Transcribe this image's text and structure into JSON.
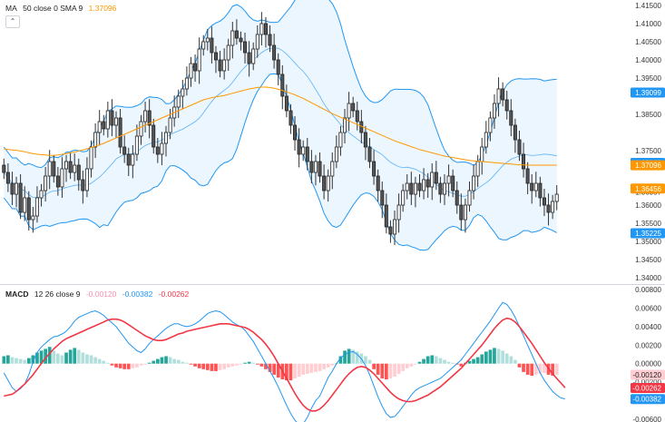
{
  "chart_data": [
    {
      "type": "candlestick",
      "panel": "price",
      "indicator_legend": {
        "name": "MA",
        "params": "50 close 0 SMA 9",
        "value": "1.37096"
      },
      "y_ticks": [
        "1.41500",
        "1.41000",
        "1.40500",
        "1.40000",
        "1.39500",
        "1.38500",
        "1.37500",
        "1.36357",
        "1.36000",
        "1.35500",
        "1.35000",
        "1.34500",
        "1.34000"
      ],
      "ylim": [
        1.3385,
        1.4165
      ],
      "closes": [
        1.369,
        1.366,
        1.363,
        1.366,
        1.358,
        1.362,
        1.356,
        1.357,
        1.362,
        1.364,
        1.368,
        1.372,
        1.368,
        1.365,
        1.37,
        1.372,
        1.369,
        1.371,
        1.367,
        1.364,
        1.37,
        1.376,
        1.38,
        1.383,
        1.381,
        1.386,
        1.382,
        1.384,
        1.376,
        1.374,
        1.371,
        1.374,
        1.379,
        1.383,
        1.386,
        1.382,
        1.376,
        1.374,
        1.377,
        1.38,
        1.384,
        1.387,
        1.39,
        1.392,
        1.395,
        1.399,
        1.397,
        1.403,
        1.405,
        1.406,
        1.402,
        1.4,
        1.397,
        1.4,
        1.404,
        1.408,
        1.406,
        1.405,
        1.402,
        1.399,
        1.403,
        1.407,
        1.41,
        1.407,
        1.404,
        1.4,
        1.396,
        1.39,
        1.386,
        1.382,
        1.378,
        1.374,
        1.376,
        1.372,
        1.369,
        1.372,
        1.368,
        1.364,
        1.368,
        1.372,
        1.376,
        1.38,
        1.384,
        1.388,
        1.386,
        1.383,
        1.38,
        1.376,
        1.372,
        1.368,
        1.364,
        1.36,
        1.354,
        1.352,
        1.356,
        1.36,
        1.364,
        1.366,
        1.363,
        1.366,
        1.364,
        1.367,
        1.365,
        1.369,
        1.366,
        1.363,
        1.366,
        1.368,
        1.364,
        1.36,
        1.356,
        1.36,
        1.364,
        1.368,
        1.372,
        1.376,
        1.38,
        1.384,
        1.388,
        1.392,
        1.389,
        1.386,
        1.382,
        1.378,
        1.374,
        1.37,
        1.366,
        1.364,
        1.366,
        1.362,
        1.36,
        1.358,
        1.361,
        1.363
      ],
      "ma": [
        1.3755,
        1.3753,
        1.3752,
        1.3751,
        1.3749,
        1.3747,
        1.3744,
        1.3742,
        1.374,
        1.3739,
        1.3738,
        1.3737,
        1.3737,
        1.3738,
        1.374,
        1.3742,
        1.3744,
        1.3746,
        1.3749,
        1.3752,
        1.3755,
        1.3759,
        1.3762,
        1.3766,
        1.377,
        1.3775,
        1.378,
        1.3785,
        1.379,
        1.3795,
        1.38,
        1.3805,
        1.381,
        1.3815,
        1.382,
        1.3825,
        1.383,
        1.3835,
        1.384,
        1.3845,
        1.385,
        1.3855,
        1.386,
        1.3865,
        1.387,
        1.3875,
        1.388,
        1.3885,
        1.389,
        1.3893,
        1.3896,
        1.3898,
        1.39,
        1.3902,
        1.3905,
        1.3908,
        1.3911,
        1.3914,
        1.3917,
        1.392,
        1.3922,
        1.3924,
        1.3925,
        1.3925,
        1.3924,
        1.3922,
        1.3919,
        1.3916,
        1.3912,
        1.3908,
        1.3904,
        1.3899,
        1.3894,
        1.3888,
        1.3882,
        1.3876,
        1.387,
        1.3864,
        1.3858,
        1.3852,
        1.3847,
        1.3842,
        1.3837,
        1.3832,
        1.3827,
        1.3822,
        1.3817,
        1.3812,
        1.3807,
        1.3802,
        1.3797,
        1.3792,
        1.3787,
        1.3782,
        1.3777,
        1.3773,
        1.3769,
        1.3765,
        1.3761,
        1.3757,
        1.3753,
        1.375,
        1.3747,
        1.3744,
        1.3741,
        1.3738,
        1.3735,
        1.3733,
        1.3731,
        1.3729,
        1.3727,
        1.3725,
        1.3723,
        1.3722,
        1.3721,
        1.372,
        1.3719,
        1.3718,
        1.3717,
        1.3716,
        1.3715,
        1.3714,
        1.3713,
        1.3712,
        1.3711,
        1.3711,
        1.371,
        1.371,
        1.371,
        1.371,
        1.371,
        1.371,
        1.371,
        1.371
      ],
      "price_labels": [
        {
          "text": "1.39099",
          "color": "#2196f3",
          "value": 1.39099
        },
        {
          "text": "1.37162",
          "color": "#2196f3",
          "value": 1.37162
        },
        {
          "text": "1.37096",
          "color": "#ff9800",
          "value": 1.37096
        },
        {
          "text": "1.36456",
          "color": "#ff9800",
          "value": 1.36456
        },
        {
          "text": "1.35225",
          "color": "#2196f3",
          "value": 1.35225
        }
      ]
    },
    {
      "type": "macd",
      "panel": "oscillator",
      "indicator_legend": {
        "name": "MACD",
        "params": "12 26 close 9",
        "values": [
          "-0.00120",
          "-0.00382",
          "-0.00262"
        ]
      },
      "y_ticks": [
        "0.00800",
        "0.00600",
        "0.00400",
        "0.00200",
        "0.00000",
        "-0.00200",
        "-0.00400",
        "-0.00600"
      ],
      "ylim": [
        -0.0063,
        0.0083
      ],
      "histogram": [
        0.0008,
        0.0009,
        0.0007,
        0.0006,
        0.0005,
        0.0004,
        0.0006,
        0.0009,
        0.0012,
        0.0014,
        0.0016,
        0.0018,
        0.0014,
        0.0011,
        0.0009,
        0.0012,
        0.0015,
        0.0017,
        0.0015,
        0.0012,
        0.001,
        0.0009,
        0.0007,
        0.0005,
        0.0003,
        0.0001,
        -0.0002,
        -0.0004,
        -0.0005,
        -0.0006,
        -0.0006,
        -0.0005,
        -0.0004,
        -0.0002,
        -0.0001,
        0.0001,
        0.0003,
        0.0005,
        0.0007,
        0.0008,
        0.0007,
        0.0005,
        0.0004,
        0.0002,
        0.0001,
        -0.0001,
        -0.0003,
        -0.0005,
        -0.0006,
        -0.0007,
        -0.0008,
        -0.0008,
        -0.0007,
        -0.0006,
        -0.0004,
        -0.0003,
        -0.0002,
        -0.0001,
        0.0001,
        0.0002,
        0.0001,
        -0.0001,
        -0.0003,
        -0.0006,
        -0.0009,
        -0.0012,
        -0.0015,
        -0.0017,
        -0.0018,
        -0.0018,
        -0.0016,
        -0.0014,
        -0.0012,
        -0.0011,
        -0.001,
        -0.0009,
        -0.0008,
        -0.0006,
        -0.0004,
        -0.0002,
        0.0,
        0.0008,
        0.0014,
        0.0016,
        0.0015,
        0.0013,
        0.0011,
        0.0008,
        0.0004,
        -0.0006,
        -0.0012,
        -0.0016,
        -0.0017,
        -0.0016,
        -0.0014,
        -0.0011,
        -0.0008,
        -0.0005,
        -0.0003,
        -0.0001,
        0.0002,
        0.0005,
        0.0008,
        0.0009,
        0.0008,
        0.0006,
        0.0004,
        0.0002,
        0.0001,
        -0.0001,
        -0.0003,
        0.0001,
        0.0003,
        0.0005,
        0.0007,
        0.001,
        0.0013,
        0.0015,
        0.0017,
        0.0016,
        0.0014,
        0.0011,
        0.0008,
        0.0004,
        -0.0004,
        -0.0009,
        -0.0012,
        -0.0013,
        -0.0012,
        -0.0011,
        -0.001,
        -0.0012,
        -0.0013,
        -0.0012
      ],
      "macd": [
        -0.001,
        -0.0018,
        -0.0026,
        -0.003,
        -0.0027,
        -0.0022,
        -0.0012,
        0.0002,
        0.0012,
        0.0018,
        0.0022,
        0.0026,
        0.0029,
        0.003,
        0.0032,
        0.0035,
        0.004,
        0.0046,
        0.005,
        0.0052,
        0.0054,
        0.0056,
        0.0057,
        0.0055,
        0.0052,
        0.0048,
        0.0044,
        0.004,
        0.0034,
        0.0028,
        0.0022,
        0.0018,
        0.0014,
        0.0012,
        0.0016,
        0.0022,
        0.0026,
        0.003,
        0.0034,
        0.0038,
        0.0041,
        0.0043,
        0.0043,
        0.0041,
        0.004,
        0.0041,
        0.0043,
        0.0046,
        0.005,
        0.0054,
        0.0056,
        0.0057,
        0.0056,
        0.0053,
        0.0049,
        0.0045,
        0.0042,
        0.004,
        0.0036,
        0.003,
        0.0024,
        0.0016,
        0.0008,
        0.0,
        -0.0008,
        -0.0016,
        -0.0025,
        -0.0035,
        -0.0045,
        -0.0054,
        -0.0061,
        -0.0066,
        -0.0065,
        -0.0058,
        -0.0048,
        -0.004,
        -0.0035,
        -0.0025,
        -0.0015,
        -0.0008,
        0.0,
        0.0006,
        0.001,
        0.0012,
        0.0013,
        0.001,
        0.0005,
        -0.0002,
        -0.0012,
        -0.0024,
        -0.0036,
        -0.0046,
        -0.0054,
        -0.0058,
        -0.0057,
        -0.0052,
        -0.0046,
        -0.004,
        -0.0034,
        -0.0029,
        -0.0026,
        -0.0024,
        -0.0022,
        -0.002,
        -0.0018,
        -0.0016,
        -0.0012,
        -0.0008,
        -0.0004,
        0.0,
        0.0004,
        0.001,
        0.0016,
        0.0022,
        0.0028,
        0.0034,
        0.004,
        0.0046,
        0.0053,
        0.006,
        0.0066,
        0.0064,
        0.0058,
        0.005,
        0.004,
        0.003,
        0.002,
        0.001,
        0.0,
        -0.001,
        -0.0018,
        -0.0024,
        -0.003,
        -0.0034,
        -0.0037,
        -0.0038
      ],
      "signal": [
        -0.0035,
        -0.0034,
        -0.0033,
        -0.003,
        -0.0026,
        -0.0022,
        -0.0017,
        -0.0012,
        -0.0006,
        0.0,
        0.0006,
        0.0011,
        0.0016,
        0.002,
        0.0024,
        0.0027,
        0.0029,
        0.0031,
        0.0033,
        0.0035,
        0.0037,
        0.0039,
        0.0041,
        0.0043,
        0.0045,
        0.0047,
        0.0048,
        0.0048,
        0.0047,
        0.0045,
        0.0042,
        0.0039,
        0.0036,
        0.0033,
        0.003,
        0.0028,
        0.0026,
        0.0025,
        0.0025,
        0.0026,
        0.0028,
        0.003,
        0.0032,
        0.0033,
        0.0035,
        0.0036,
        0.0037,
        0.0038,
        0.0039,
        0.004,
        0.0041,
        0.0042,
        0.0043,
        0.0043,
        0.0043,
        0.0042,
        0.0041,
        0.004,
        0.0039,
        0.0037,
        0.0034,
        0.003,
        0.0026,
        0.0021,
        0.0015,
        0.0008,
        0.0,
        -0.0008,
        -0.0016,
        -0.0024,
        -0.0032,
        -0.0039,
        -0.0045,
        -0.0049,
        -0.0051,
        -0.0051,
        -0.0049,
        -0.0045,
        -0.004,
        -0.0034,
        -0.0028,
        -0.0022,
        -0.0016,
        -0.0011,
        -0.0007,
        -0.0004,
        -0.0003,
        -0.0004,
        -0.0007,
        -0.0011,
        -0.0016,
        -0.0021,
        -0.0026,
        -0.0031,
        -0.0035,
        -0.0038,
        -0.004,
        -0.0041,
        -0.0041,
        -0.004,
        -0.0038,
        -0.0036,
        -0.0034,
        -0.0031,
        -0.0028,
        -0.0025,
        -0.0021,
        -0.0017,
        -0.0013,
        -0.0009,
        -0.0005,
        0.0,
        0.0005,
        0.001,
        0.0015,
        0.002,
        0.0026,
        0.0032,
        0.0038,
        0.0043,
        0.0047,
        0.0049,
        0.0048,
        0.0045,
        0.004,
        0.0034,
        0.0028,
        0.0022,
        0.0015,
        0.0008,
        0.0001,
        -0.0005,
        -0.0011,
        -0.0016,
        -0.0021,
        -0.0026
      ],
      "price_labels": [
        {
          "text": "-0.00120",
          "color": "#ffcdd2",
          "textColor": "#222",
          "value": -0.0012
        },
        {
          "text": "-0.00262",
          "color": "#f23645",
          "value": -0.00262
        },
        {
          "text": "-0.00382",
          "color": "#2196f3",
          "value": -0.00382
        }
      ]
    }
  ],
  "colors": {
    "bull": "#222222",
    "bear": "#555555",
    "band_line": "#2196f3",
    "band_fill": "#e3f2fd",
    "ma_line": "#ff9800",
    "macd_line": "#2196f3",
    "signal_line": "#f23645",
    "hist_pos_strong": "#26a69a",
    "hist_pos_weak": "#b2dfdb",
    "hist_neg_strong": "#ff5252",
    "hist_neg_weak": "#ffcdd2",
    "ma_value": "#ff9800",
    "macd_v1": "#f48fb1",
    "macd_v2": "#2196f3",
    "macd_v3": "#f23645"
  }
}
